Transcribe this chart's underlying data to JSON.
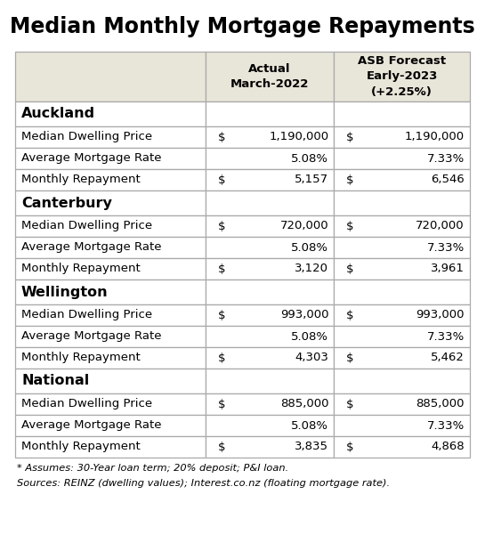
{
  "title": "Median Monthly Mortgage Repayments",
  "header_col1": "Actual\nMarch-2022",
  "header_col2": "ASB Forecast\nEarly-2023\n(+2.25%)",
  "sections": [
    {
      "region": "Auckland",
      "rows": [
        {
          "label": "Median Dwelling Price",
          "actual_dollar": "$",
          "actual_val": "1,190,000",
          "forecast_dollar": "$",
          "forecast_val": "1,190,000"
        },
        {
          "label": "Average Mortgage Rate",
          "actual_dollar": "",
          "actual_val": "5.08%",
          "forecast_dollar": "",
          "forecast_val": "7.33%"
        },
        {
          "label": "Monthly Repayment",
          "actual_dollar": "$",
          "actual_val": "5,157",
          "forecast_dollar": "$",
          "forecast_val": "6,546"
        }
      ]
    },
    {
      "region": "Canterbury",
      "rows": [
        {
          "label": "Median Dwelling Price",
          "actual_dollar": "$",
          "actual_val": "720,000",
          "forecast_dollar": "$",
          "forecast_val": "720,000"
        },
        {
          "label": "Average Mortgage Rate",
          "actual_dollar": "",
          "actual_val": "5.08%",
          "forecast_dollar": "",
          "forecast_val": "7.33%"
        },
        {
          "label": "Monthly Repayment",
          "actual_dollar": "$",
          "actual_val": "3,120",
          "forecast_dollar": "$",
          "forecast_val": "3,961"
        }
      ]
    },
    {
      "region": "Wellington",
      "rows": [
        {
          "label": "Median Dwelling Price",
          "actual_dollar": "$",
          "actual_val": "993,000",
          "forecast_dollar": "$",
          "forecast_val": "993,000"
        },
        {
          "label": "Average Mortgage Rate",
          "actual_dollar": "",
          "actual_val": "5.08%",
          "forecast_dollar": "",
          "forecast_val": "7.33%"
        },
        {
          "label": "Monthly Repayment",
          "actual_dollar": "$",
          "actual_val": "4,303",
          "forecast_dollar": "$",
          "forecast_val": "5,462"
        }
      ]
    },
    {
      "region": "National",
      "rows": [
        {
          "label": "Median Dwelling Price",
          "actual_dollar": "$",
          "actual_val": "885,000",
          "forecast_dollar": "$",
          "forecast_val": "885,000"
        },
        {
          "label": "Average Mortgage Rate",
          "actual_dollar": "",
          "actual_val": "5.08%",
          "forecast_dollar": "",
          "forecast_val": "7.33%"
        },
        {
          "label": "Monthly Repayment",
          "actual_dollar": "$",
          "actual_val": "3,835",
          "forecast_dollar": "$",
          "forecast_val": "4,868"
        }
      ]
    }
  ],
  "footnote1": "* Assumes: 30-Year loan term; 20% deposit; P&I loan.",
  "footnote2": "Sources: REINZ (dwelling values); Interest.co.nz (floating mortgage rate).",
  "header_bg": "#e8e5d9",
  "white_bg": "#ffffff",
  "border_color": "#aaaaaa",
  "text_color": "#000000",
  "title_fontsize": 17,
  "header_fontsize": 9.5,
  "region_fontsize": 11.5,
  "row_fontsize": 9.5,
  "footnote_fontsize": 8.2,
  "fig_width": 5.45,
  "fig_height": 6.01,
  "dpi": 100
}
